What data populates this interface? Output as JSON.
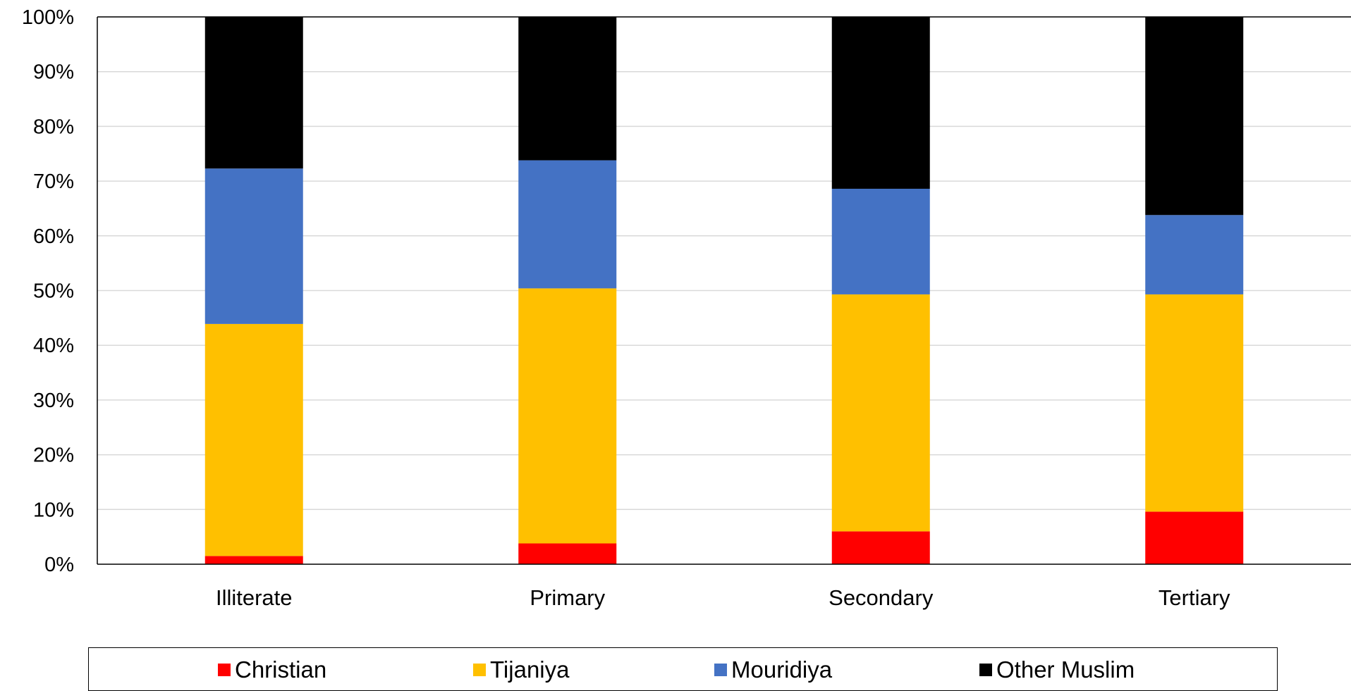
{
  "chart_data": {
    "type": "bar",
    "stacked": true,
    "categories": [
      "Illiterate",
      "Primary",
      "Secondary",
      "Tertiary"
    ],
    "series": [
      {
        "name": "Christian",
        "color": "#ff0000",
        "values": [
          1.5,
          3.8,
          6.0,
          9.6
        ]
      },
      {
        "name": "Tijaniya",
        "color": "#ffc000",
        "values": [
          42.4,
          46.6,
          43.3,
          39.7
        ]
      },
      {
        "name": "Mouridiya",
        "color": "#4472c4",
        "values": [
          28.4,
          23.4,
          19.3,
          14.5
        ]
      },
      {
        "name": "Other Muslim",
        "color": "#000000",
        "values": [
          27.7,
          26.2,
          31.4,
          36.2
        ]
      }
    ],
    "ylim": [
      0,
      100
    ],
    "yticks": [
      "0%",
      "10%",
      "20%",
      "30%",
      "40%",
      "50%",
      "60%",
      "70%",
      "80%",
      "90%",
      "100%"
    ],
    "grid": true,
    "legend_position": "bottom"
  }
}
